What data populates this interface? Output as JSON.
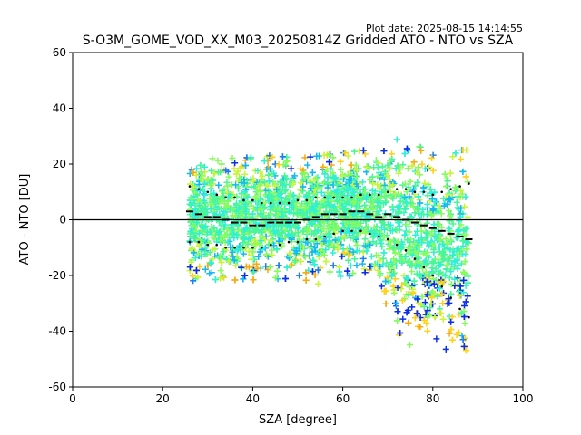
{
  "plot_date": "Plot date: 2025-08-15 14:14:55",
  "chart_data": {
    "type": "scatter",
    "title": "S-O3M_GOME_VOD_XX_M03_20250814Z Gridded ATO - NTO vs SZA",
    "xlabel": "SZA [degree]",
    "ylabel": "ATO - NTO [DU]",
    "xlim": [
      0,
      100
    ],
    "ylim": [
      -60,
      60
    ],
    "x_ticks": [
      0,
      20,
      40,
      60,
      80,
      100
    ],
    "y_ticks": [
      -60,
      -40,
      -20,
      0,
      20,
      40,
      60
    ],
    "grid": false,
    "legend": "none",
    "reference_line_y": 0,
    "sza_range": [
      26,
      88
    ],
    "point_colors": [
      "#0b2ee6",
      "#1c7cf5",
      "#16b8f2",
      "#2ff0d6",
      "#4af59a",
      "#86fb5e",
      "#c8f53a",
      "#ffd21a",
      "#f7a90f"
    ],
    "envelope": {
      "sza": [
        26,
        30,
        35,
        40,
        45,
        50,
        55,
        60,
        65,
        70,
        75,
        80,
        84,
        88
      ],
      "upper": [
        21,
        22,
        22,
        23,
        23,
        22,
        23,
        24,
        25,
        30,
        27,
        25,
        25,
        25
      ],
      "lower": [
        -22,
        -24,
        -25,
        -24,
        -22,
        -23,
        -23,
        -20,
        -22,
        -38,
        -45,
        -48,
        -52,
        -56
      ]
    },
    "series": [
      {
        "style": "mean",
        "x": [
          26,
          28,
          30,
          32,
          34,
          36,
          38,
          40,
          42,
          44,
          46,
          48,
          50,
          52,
          54,
          56,
          58,
          60,
          62,
          64,
          66,
          68,
          70,
          72,
          74,
          76,
          78,
          80,
          82,
          84,
          86,
          88
        ],
        "y": [
          3,
          2,
          1,
          1,
          0,
          -1,
          -1,
          -2,
          -2,
          -1,
          -1,
          -1,
          -1,
          0,
          1,
          2,
          2,
          2,
          3,
          3,
          2,
          1,
          2,
          1,
          0,
          -1,
          -2,
          -3,
          -4,
          -5,
          -6,
          -7
        ]
      },
      {
        "style": "upper-sigma",
        "x": [
          26,
          28,
          30,
          32,
          34,
          36,
          38,
          40,
          42,
          44,
          46,
          48,
          50,
          52,
          54,
          56,
          58,
          60,
          62,
          64,
          66,
          68,
          70,
          72,
          74,
          76,
          78,
          80,
          82,
          84,
          86,
          88
        ],
        "y": [
          12,
          11,
          10,
          9,
          8,
          8,
          7,
          7,
          6,
          6,
          6,
          6,
          7,
          7,
          8,
          8,
          8,
          8,
          8,
          9,
          9,
          9,
          10,
          11,
          11,
          10,
          10,
          9,
          10,
          11,
          12,
          13
        ]
      },
      {
        "style": "lower-sigma",
        "x": [
          26,
          28,
          30,
          32,
          34,
          36,
          38,
          40,
          42,
          44,
          46,
          48,
          50,
          52,
          54,
          56,
          58,
          60,
          62,
          64,
          66,
          68,
          70,
          72,
          74,
          76,
          78,
          80,
          82,
          84,
          86,
          88
        ],
        "y": [
          -8,
          -8,
          -9,
          -9,
          -10,
          -10,
          -10,
          -10,
          -10,
          -9,
          -9,
          -8,
          -8,
          -7,
          -7,
          -6,
          -5,
          -4,
          -4,
          -4,
          -5,
          -6,
          -7,
          -9,
          -11,
          -14,
          -17,
          -20,
          -24,
          -28,
          -32,
          -35
        ]
      }
    ]
  }
}
